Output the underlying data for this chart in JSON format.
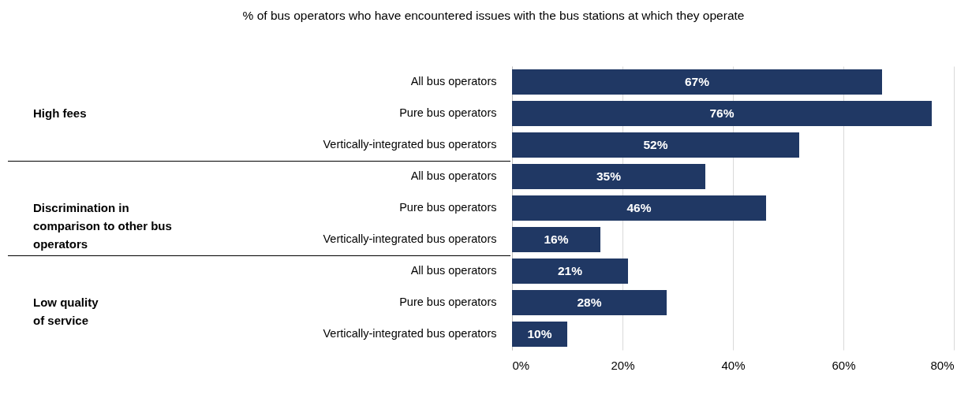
{
  "chart_data": {
    "type": "bar",
    "orientation": "horizontal",
    "title": "% of bus operators who have encountered issues with the bus stations at which they operate",
    "categories": [
      "All bus operators",
      "Pure bus operators",
      "Vertically-integrated bus operators",
      "All bus operators",
      "Pure bus operators",
      "Vertically-integrated bus operators",
      "All bus operators",
      "Pure bus operators",
      "Vertically-integrated bus operators"
    ],
    "values": [
      67,
      76,
      52,
      35,
      46,
      16,
      21,
      28,
      10
    ],
    "value_labels": [
      "67%",
      "76%",
      "52%",
      "35%",
      "46%",
      "16%",
      "21%",
      "28%",
      "10%"
    ],
    "color": "#203864",
    "xlim": [
      0,
      80
    ],
    "xticks": [
      {
        "value": 0,
        "label": "0%"
      },
      {
        "value": 20,
        "label": "20%"
      },
      {
        "value": 40,
        "label": "40%"
      },
      {
        "value": 60,
        "label": "60%"
      },
      {
        "value": 80,
        "label": "80%"
      }
    ],
    "grid": "x",
    "annotations": [
      "High fees",
      "Discrimination in\ncomparison to other bus\noperators",
      "Low quality\nof service"
    ]
  }
}
